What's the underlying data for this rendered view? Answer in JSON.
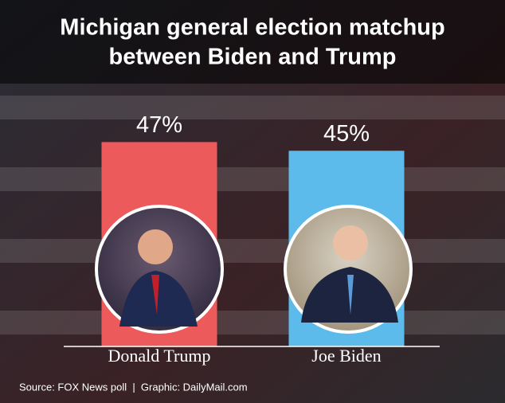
{
  "chart_data": {
    "type": "bar",
    "title": [
      "Michigan general election matchup",
      "between Biden and Trump"
    ],
    "categories": [
      "Donald Trump",
      "Joe Biden"
    ],
    "values": [
      47,
      45
    ],
    "value_labels": [
      "47%",
      "45%"
    ],
    "colors": [
      "#ec5a5c",
      "#5cbbea"
    ],
    "ylim": [
      0,
      50
    ],
    "source": "Source: FOX News poll  |  Graphic: DailyMail.com"
  }
}
